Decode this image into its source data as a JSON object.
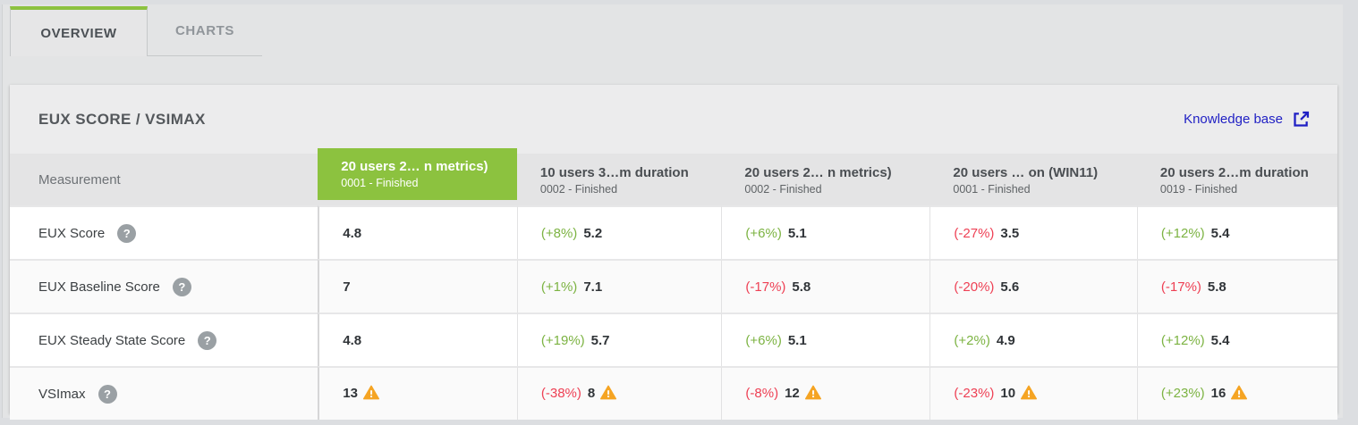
{
  "tabs": {
    "overview": "OVERVIEW",
    "charts": "CHARTS"
  },
  "panel": {
    "title": "EUX SCORE / VSIMAX",
    "knowledge_base_label": "Knowledge base",
    "link_color": "#1f1fc4"
  },
  "icons": {
    "help_glyph": "?"
  },
  "colors": {
    "highlight_green": "#8cc23f",
    "positive_pct": "#7cb342",
    "negative_pct": "#ee4054",
    "warning_orange": "#f5a423"
  },
  "table": {
    "measurement_header": "Measurement",
    "columns": [
      {
        "title": "20 users 2…  n metrics)",
        "subtitle": "0001 - Finished",
        "highlight": true
      },
      {
        "title": "10 users 3…m duration",
        "subtitle": "0002 - Finished",
        "highlight": false
      },
      {
        "title": "20 users 2…  n metrics)",
        "subtitle": "0002 - Finished",
        "highlight": false
      },
      {
        "title": "20 users …  on (WIN11)",
        "subtitle": "0001 - Finished",
        "highlight": false
      },
      {
        "title": "20 users 2…m duration",
        "subtitle": "0019 - Finished",
        "highlight": false
      }
    ],
    "rows": [
      {
        "label": "EUX Score",
        "cells": [
          {
            "pct": "",
            "value": "4.8",
            "warning": false
          },
          {
            "pct": "(+8%)",
            "value": "5.2",
            "warning": false
          },
          {
            "pct": "(+6%)",
            "value": "5.1",
            "warning": false
          },
          {
            "pct": "(-27%)",
            "value": "3.5",
            "warning": false
          },
          {
            "pct": "(+12%)",
            "value": "5.4",
            "warning": false
          }
        ]
      },
      {
        "label": "EUX Baseline Score",
        "cells": [
          {
            "pct": "",
            "value": "7",
            "warning": false
          },
          {
            "pct": "(+1%)",
            "value": "7.1",
            "warning": false
          },
          {
            "pct": "(-17%)",
            "value": "5.8",
            "warning": false
          },
          {
            "pct": "(-20%)",
            "value": "5.6",
            "warning": false
          },
          {
            "pct": "(-17%)",
            "value": "5.8",
            "warning": false
          }
        ]
      },
      {
        "label": "EUX Steady State Score",
        "cells": [
          {
            "pct": "",
            "value": "4.8",
            "warning": false
          },
          {
            "pct": "(+19%)",
            "value": "5.7",
            "warning": false
          },
          {
            "pct": "(+6%)",
            "value": "5.1",
            "warning": false
          },
          {
            "pct": "(+2%)",
            "value": "4.9",
            "warning": false
          },
          {
            "pct": "(+12%)",
            "value": "5.4",
            "warning": false
          }
        ]
      },
      {
        "label": "VSImax",
        "cells": [
          {
            "pct": "",
            "value": "13",
            "warning": true
          },
          {
            "pct": "(-38%)",
            "value": "8",
            "warning": true
          },
          {
            "pct": "(-8%)",
            "value": "12",
            "warning": true
          },
          {
            "pct": "(-23%)",
            "value": "10",
            "warning": true
          },
          {
            "pct": "(+23%)",
            "value": "16",
            "warning": true
          }
        ]
      }
    ]
  }
}
